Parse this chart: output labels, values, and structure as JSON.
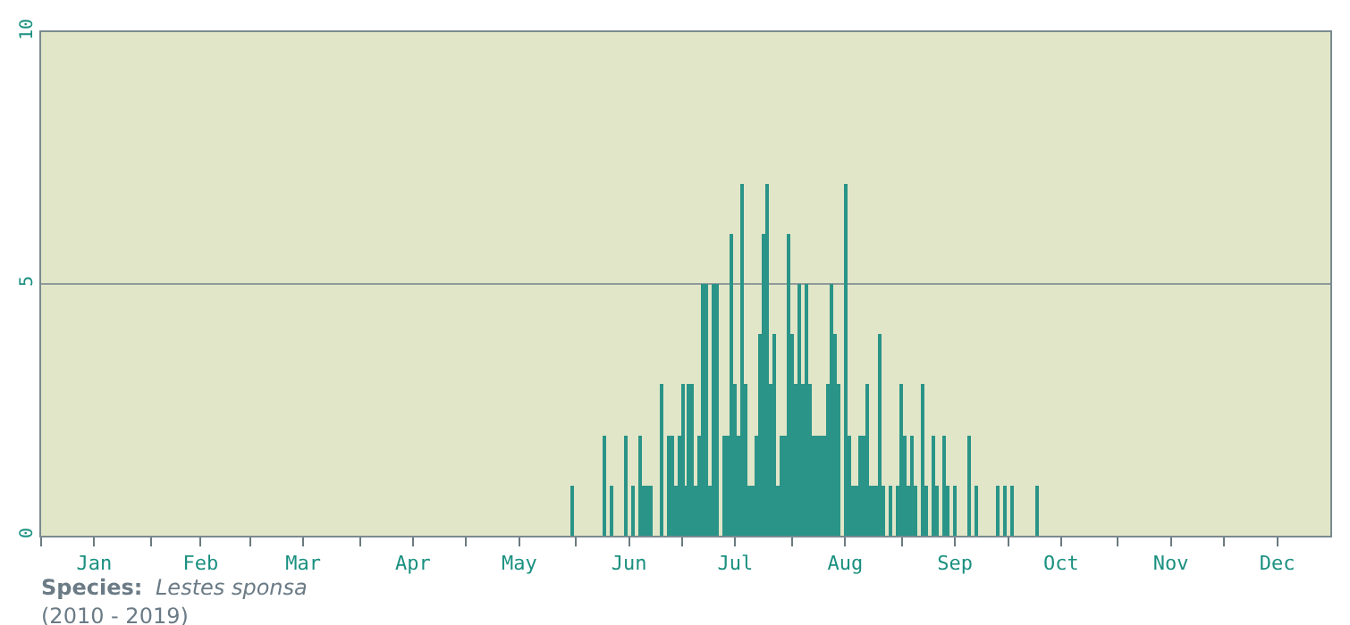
{
  "chart_data": {
    "type": "bar",
    "x": [
      "--05-31",
      "--06-09",
      "--06-11",
      "--06-15",
      "--06-17",
      "--06-19",
      "--06-20",
      "--06-21",
      "--06-22",
      "--06-25",
      "--06-27",
      "--06-28",
      "--06-29",
      "--06-30",
      "--07-01",
      "--07-02",
      "--07-03",
      "--07-04",
      "--07-05",
      "--07-06",
      "--07-07",
      "--07-08",
      "--07-09",
      "--07-10",
      "--07-11",
      "--07-13",
      "--07-14",
      "--07-15",
      "--07-16",
      "--07-17",
      "--07-18",
      "--07-19",
      "--07-20",
      "--07-21",
      "--07-22",
      "--07-23",
      "--07-24",
      "--07-25",
      "--07-26",
      "--07-27",
      "--07-28",
      "--07-29",
      "--07-30",
      "--07-31",
      "--08-01",
      "--08-02",
      "--08-03",
      "--08-04",
      "--08-05",
      "--08-06",
      "--08-07",
      "--08-08",
      "--08-09",
      "--08-10",
      "--08-11",
      "--08-12",
      "--08-13",
      "--08-14",
      "--08-16",
      "--08-17",
      "--08-18",
      "--08-19",
      "--08-20",
      "--08-21",
      "--08-22",
      "--08-23",
      "--08-24",
      "--08-25",
      "--08-26",
      "--08-27",
      "--08-29",
      "--08-31",
      "--09-01",
      "--09-02",
      "--09-03",
      "--09-04",
      "--09-05",
      "--09-07",
      "--09-08",
      "--09-10",
      "--09-11",
      "--09-13",
      "--09-14",
      "--09-16",
      "--09-20",
      "--09-22",
      "--09-28",
      "--09-30",
      "--10-02",
      "--10-09"
    ],
    "values": [
      1,
      2,
      1,
      2,
      1,
      2,
      1,
      1,
      1,
      3,
      2,
      2,
      1,
      2,
      3,
      1,
      3,
      3,
      1,
      2,
      5,
      5,
      1,
      5,
      5,
      2,
      2,
      6,
      3,
      2,
      7,
      3,
      1,
      1,
      2,
      4,
      6,
      7,
      3,
      4,
      1,
      2,
      2,
      6,
      4,
      3,
      5,
      3,
      5,
      3,
      2,
      2,
      2,
      2,
      3,
      5,
      4,
      3,
      7,
      2,
      1,
      1,
      2,
      2,
      3,
      1,
      1,
      1,
      4,
      1,
      1,
      1,
      3,
      2,
      1,
      2,
      1,
      3,
      1,
      2,
      1,
      2,
      1,
      1,
      2,
      1,
      1,
      1,
      1,
      1
    ],
    "color": "#2a9488",
    "xlim": [
      "--01-01",
      "--12-31"
    ],
    "xticks": [
      {
        "value": "--01-01",
        "label": null
      },
      {
        "value": "--01-16",
        "label": "Jan"
      },
      {
        "value": "--02-01",
        "label": null
      },
      {
        "value": "--02-15",
        "label": "Feb"
      },
      {
        "value": "--03-01",
        "label": null
      },
      {
        "value": "--03-16",
        "label": "Mar"
      },
      {
        "value": "--04-01",
        "label": null
      },
      {
        "value": "--04-16",
        "label": "Apr"
      },
      {
        "value": "--05-01",
        "label": null
      },
      {
        "value": "--05-16",
        "label": "May"
      },
      {
        "value": "--06-01",
        "label": null
      },
      {
        "value": "--06-16",
        "label": "Jun"
      },
      {
        "value": "--07-01",
        "label": null
      },
      {
        "value": "--07-16",
        "label": "Jul"
      },
      {
        "value": "--08-01",
        "label": null
      },
      {
        "value": "--08-16",
        "label": "Aug"
      },
      {
        "value": "--09-01",
        "label": null
      },
      {
        "value": "--09-16",
        "label": "Sep"
      },
      {
        "value": "--10-01",
        "label": null
      },
      {
        "value": "--10-16",
        "label": "Oct"
      },
      {
        "value": "--11-01",
        "label": null
      },
      {
        "value": "--11-16",
        "label": "Nov"
      },
      {
        "value": "--12-01",
        "label": null
      },
      {
        "value": "--12-16",
        "label": "Dec"
      }
    ],
    "ylim": [
      0,
      10
    ],
    "yticks": [
      0,
      5,
      10
    ],
    "grid": "y",
    "annotations": [
      "Species:",
      "Lestes sponsa",
      "(2010 - 2019)"
    ]
  }
}
